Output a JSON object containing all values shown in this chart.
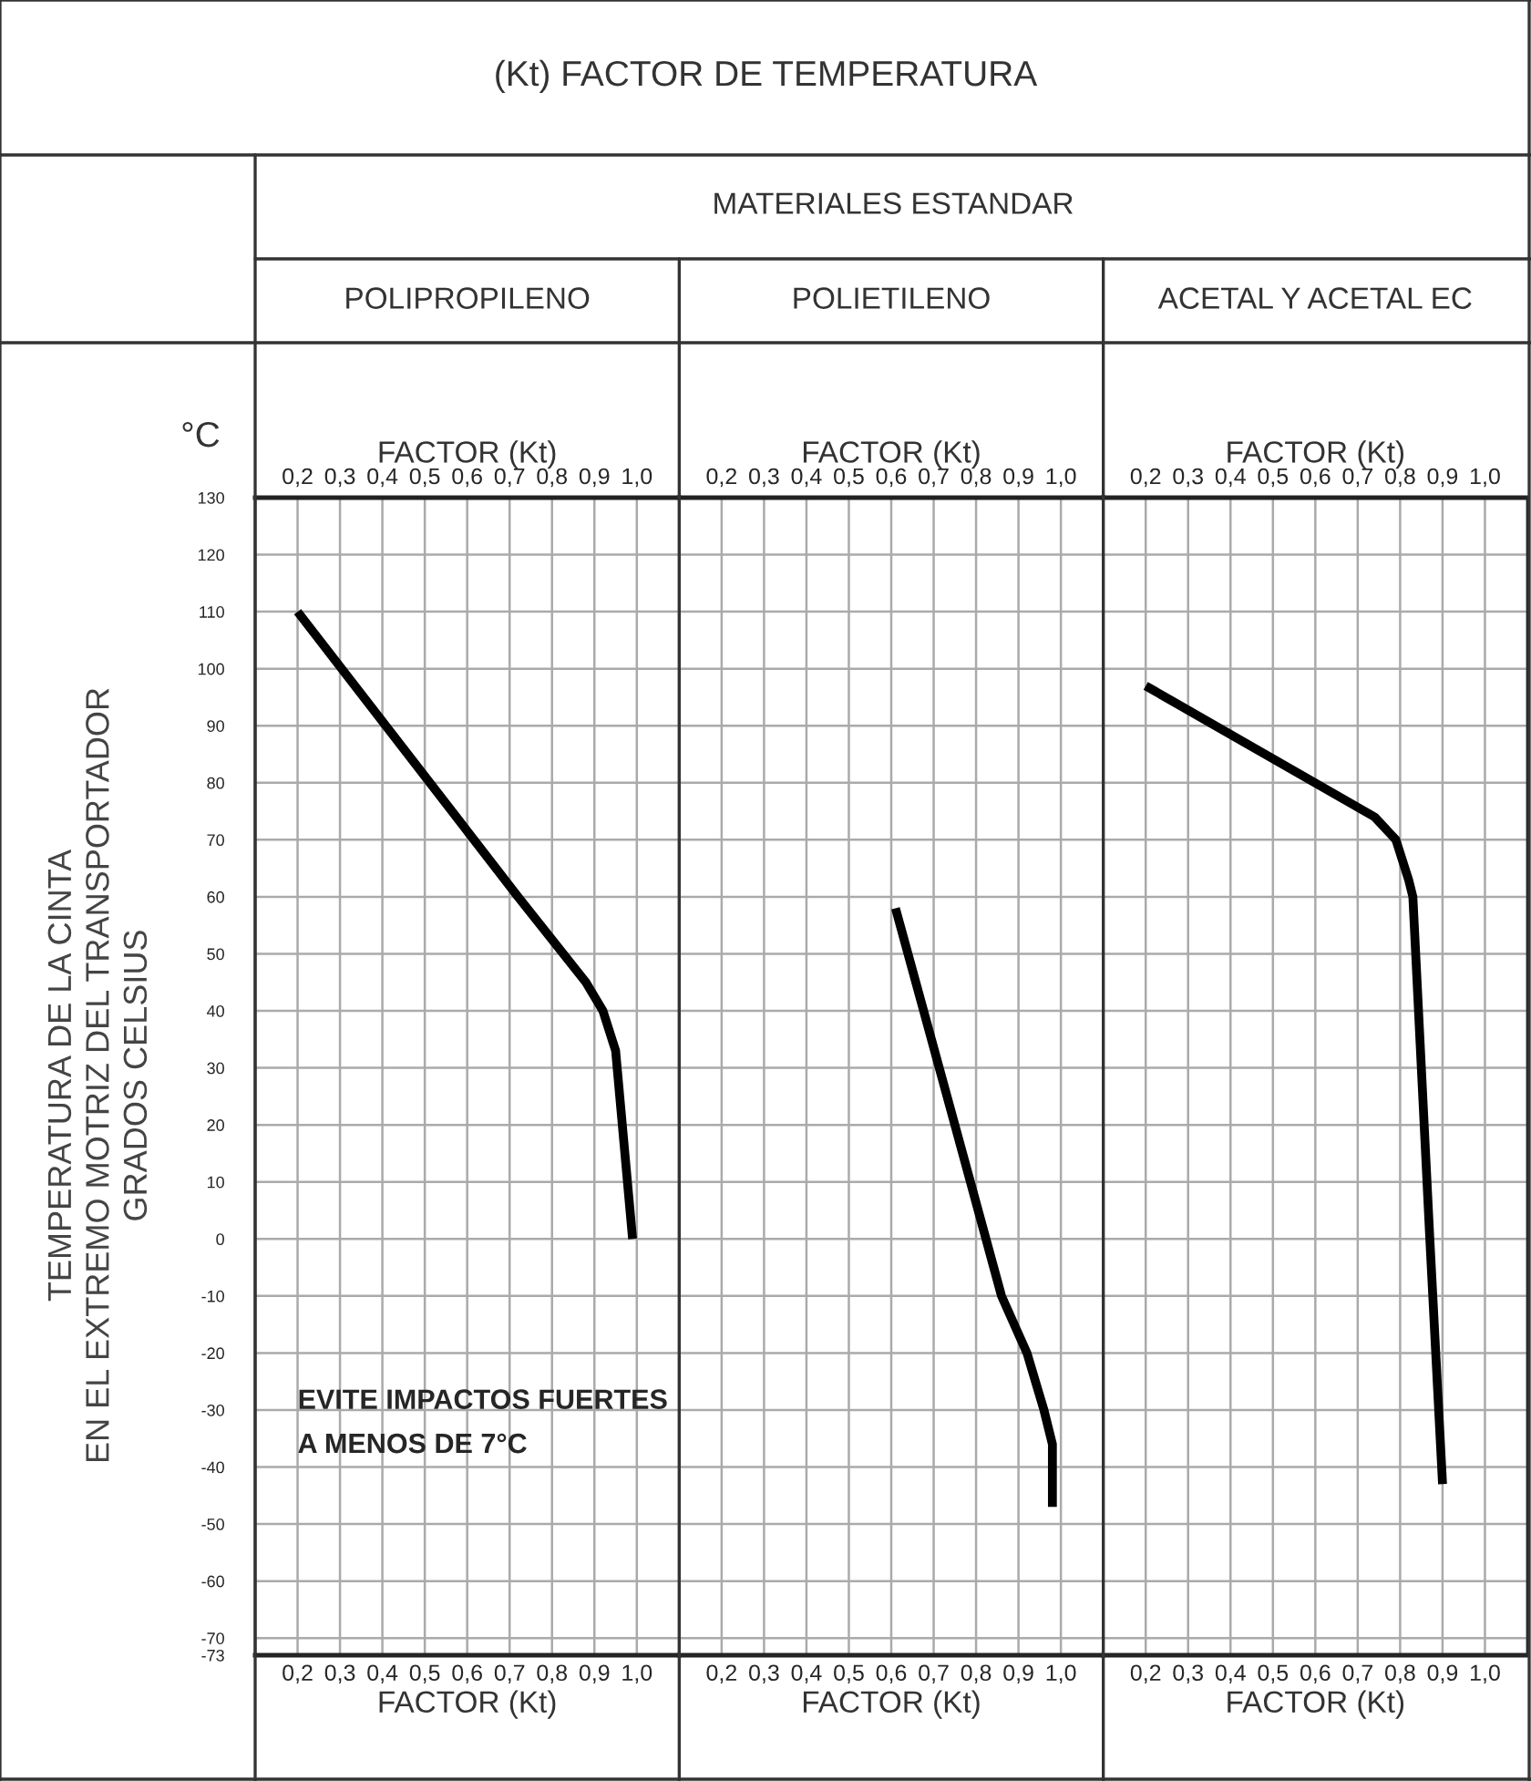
{
  "chart_data": [
    {
      "type": "line",
      "title": "POLIPROPILENO",
      "ylabel": "TEMPERATURA DE LA CINTA\nEN EL EXTREMO MOTRIZ DEL TRANSPORTADOR\nGRADOS CELSIUS",
      "xlabel": "FACTOR (Kt)",
      "x2label": "FACTOR (Kt)",
      "annotations": [
        "(Kt) FACTOR DE TEMPERATURA",
        "MATERIALES ESTANDAR",
        "°C",
        "EVITE IMPACTOS FUERTES\nA MENOS DE 7°C"
      ],
      "series": [
        {
          "color": "#000000",
          "x": [
            0.2,
            0.72,
            0.88,
            0.92,
            0.95,
            0.99
          ],
          "values": [
            110,
            60,
            45,
            40,
            33,
            0
          ]
        }
      ],
      "xlim": [
        0.1,
        1.1
      ],
      "x2lim": [
        0.1,
        1.1
      ],
      "ylim": [
        -73,
        130
      ],
      "xticks": [
        {
          "value": 0.2,
          "label": "0,2"
        },
        {
          "value": 0.3,
          "label": "0,3"
        },
        {
          "value": 0.4,
          "label": "0,4"
        },
        {
          "value": 0.5,
          "label": "0,5"
        },
        {
          "value": 0.6,
          "label": "0,6"
        },
        {
          "value": 0.7,
          "label": "0,7"
        },
        {
          "value": 0.8,
          "label": "0,8"
        },
        {
          "value": 0.9,
          "label": "0,9"
        },
        {
          "value": 1.0,
          "label": "1,0"
        }
      ],
      "x2ticks": [
        {
          "value": 0.2,
          "label": "0,2"
        },
        {
          "value": 0.3,
          "label": "0,3"
        },
        {
          "value": 0.4,
          "label": "0,4"
        },
        {
          "value": 0.5,
          "label": "0,5"
        },
        {
          "value": 0.6,
          "label": "0,6"
        },
        {
          "value": 0.7,
          "label": "0,7"
        },
        {
          "value": 0.8,
          "label": "0,8"
        },
        {
          "value": 0.9,
          "label": "0,9"
        },
        {
          "value": 1.0,
          "label": "1,0"
        }
      ],
      "yticks": [
        130,
        120,
        110,
        100,
        90,
        80,
        70,
        60,
        50,
        40,
        30,
        20,
        10,
        0,
        -10,
        -20,
        -30,
        -40,
        -50,
        -60,
        -70,
        -73
      ],
      "grid": true,
      "marker": "none",
      "line_style": "solid"
    },
    {
      "type": "line",
      "title": "POLIETILENO",
      "xlabel": "FACTOR (Kt)",
      "x2label": "FACTOR (Kt)",
      "series": [
        {
          "color": "#000000",
          "x": [
            0.61,
            0.75,
            0.86,
            0.92,
            0.96,
            0.98,
            0.98
          ],
          "values": [
            58,
            20,
            -10,
            -20,
            -30,
            -36,
            -47
          ]
        }
      ],
      "xlim": [
        0.1,
        1.1
      ],
      "x2lim": [
        0.1,
        1.1
      ],
      "ylim": [
        -73,
        130
      ],
      "xticks": [
        {
          "value": 0.2,
          "label": "0,2"
        },
        {
          "value": 0.3,
          "label": "0,3"
        },
        {
          "value": 0.4,
          "label": "0,4"
        },
        {
          "value": 0.5,
          "label": "0,5"
        },
        {
          "value": 0.6,
          "label": "0,6"
        },
        {
          "value": 0.7,
          "label": "0,7"
        },
        {
          "value": 0.8,
          "label": "0,8"
        },
        {
          "value": 0.9,
          "label": "0,9"
        },
        {
          "value": 1.0,
          "label": "1,0"
        }
      ],
      "x2ticks": [
        {
          "value": 0.2,
          "label": "0,2"
        },
        {
          "value": 0.3,
          "label": "0,3"
        },
        {
          "value": 0.4,
          "label": "0,4"
        },
        {
          "value": 0.5,
          "label": "0,5"
        },
        {
          "value": 0.6,
          "label": "0,6"
        },
        {
          "value": 0.7,
          "label": "0,7"
        },
        {
          "value": 0.8,
          "label": "0,8"
        },
        {
          "value": 0.9,
          "label": "0,9"
        },
        {
          "value": 1.0,
          "label": "1,0"
        }
      ],
      "yticks": [
        130,
        120,
        110,
        100,
        90,
        80,
        70,
        60,
        50,
        40,
        30,
        20,
        10,
        0,
        -10,
        -20,
        -30,
        -40,
        -50,
        -60,
        -70,
        -73
      ],
      "tick_labels": "x",
      "grid": true,
      "marker": "none",
      "line_style": "solid"
    },
    {
      "type": "line",
      "title": "ACETAL Y ACETAL EC",
      "xlabel": "FACTOR (Kt)",
      "x2label": "FACTOR (Kt)",
      "series": [
        {
          "color": "#000000",
          "x": [
            0.2,
            0.74,
            0.79,
            0.82,
            0.83,
            0.87,
            0.9
          ],
          "values": [
            97,
            74,
            70,
            63,
            60,
            0,
            -43
          ]
        }
      ],
      "xlim": [
        0.1,
        1.1
      ],
      "x2lim": [
        0.1,
        1.1
      ],
      "ylim": [
        -73,
        130
      ],
      "xticks": [
        {
          "value": 0.2,
          "label": "0,2"
        },
        {
          "value": 0.3,
          "label": "0,3"
        },
        {
          "value": 0.4,
          "label": "0,4"
        },
        {
          "value": 0.5,
          "label": "0,5"
        },
        {
          "value": 0.6,
          "label": "0,6"
        },
        {
          "value": 0.7,
          "label": "0,7"
        },
        {
          "value": 0.8,
          "label": "0,8"
        },
        {
          "value": 0.9,
          "label": "0,9"
        },
        {
          "value": 1.0,
          "label": "1,0"
        }
      ],
      "x2ticks": [
        {
          "value": 0.2,
          "label": "0,2"
        },
        {
          "value": 0.3,
          "label": "0,3"
        },
        {
          "value": 0.4,
          "label": "0,4"
        },
        {
          "value": 0.5,
          "label": "0,5"
        },
        {
          "value": 0.6,
          "label": "0,6"
        },
        {
          "value": 0.7,
          "label": "0,7"
        },
        {
          "value": 0.8,
          "label": "0,8"
        },
        {
          "value": 0.9,
          "label": "0,9"
        },
        {
          "value": 1.0,
          "label": "1,0"
        }
      ],
      "yticks": [
        130,
        120,
        110,
        100,
        90,
        80,
        70,
        60,
        50,
        40,
        30,
        20,
        10,
        0,
        -10,
        -20,
        -30,
        -40,
        -50,
        -60,
        -70,
        -73
      ],
      "tick_labels": "x",
      "grid": true,
      "marker": "none",
      "line_style": "solid"
    }
  ]
}
